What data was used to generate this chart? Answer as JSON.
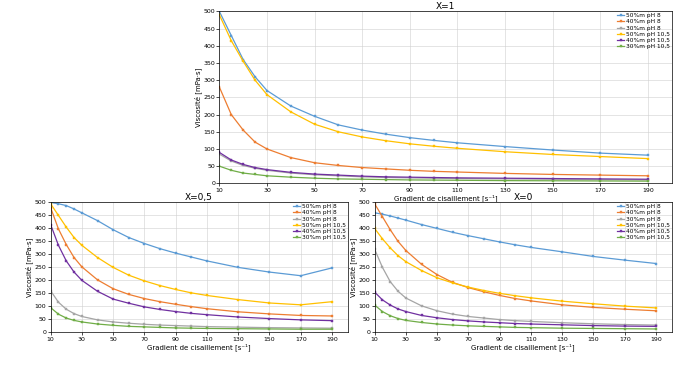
{
  "title_x1": "X=1",
  "title_x05": "X=0,5",
  "title_x0": "X=0",
  "xlabel": "Gradient de cisaillement [s⁻¹]",
  "ylabel": "Viscosité [mPa·s]",
  "xlim": [
    10,
    200
  ],
  "ylim": [
    0,
    500
  ],
  "xticks": [
    10,
    30,
    50,
    70,
    90,
    110,
    130,
    150,
    170,
    190
  ],
  "yticks": [
    0,
    50,
    100,
    150,
    200,
    250,
    300,
    350,
    400,
    450,
    500
  ],
  "legend_labels": [
    "50%m pH 8",
    "40%m pH 8",
    "30%m pH 8",
    "50%m pH 10,5",
    "40%m pH 10,5",
    "30%m pH 10,5"
  ],
  "colors": [
    "#5B9BD5",
    "#ED7D31",
    "#A5A5A5",
    "#FFC000",
    "#7030A0",
    "#70AD47"
  ],
  "x_points": [
    10,
    15,
    20,
    25,
    30,
    40,
    50,
    60,
    70,
    80,
    90,
    100,
    110,
    130,
    150,
    170,
    190
  ],
  "curves_x1": {
    "50m_pH8": [
      500,
      430,
      360,
      310,
      270,
      225,
      195,
      170,
      155,
      143,
      133,
      125,
      118,
      107,
      97,
      88,
      82
    ],
    "40m_pH8": [
      280,
      200,
      155,
      120,
      100,
      75,
      60,
      52,
      46,
      42,
      38,
      35,
      33,
      29,
      26,
      24,
      22
    ],
    "30m_pH8": [
      85,
      65,
      52,
      44,
      38,
      30,
      25,
      22,
      19,
      17,
      16,
      15,
      14,
      13,
      12,
      11,
      10
    ],
    "50m_pH105": [
      490,
      415,
      355,
      300,
      258,
      208,
      172,
      150,
      135,
      124,
      115,
      108,
      102,
      92,
      84,
      78,
      72
    ],
    "40m_pH105": [
      90,
      68,
      55,
      46,
      40,
      32,
      27,
      24,
      21,
      19,
      18,
      17,
      16,
      15,
      14,
      13,
      12
    ],
    "30m_pH105": [
      50,
      38,
      30,
      26,
      22,
      18,
      15,
      13,
      12,
      11,
      10,
      9.5,
      9,
      8,
      7.5,
      7,
      6.5
    ]
  },
  "curves_x05": {
    "50m_pH8": [
      500,
      495,
      488,
      475,
      460,
      430,
      395,
      365,
      342,
      322,
      305,
      290,
      275,
      250,
      232,
      218,
      248
    ],
    "40m_pH8": [
      480,
      398,
      338,
      288,
      252,
      202,
      168,
      146,
      130,
      118,
      108,
      99,
      91,
      79,
      71,
      65,
      63
    ],
    "30m_pH8": [
      160,
      116,
      89,
      72,
      61,
      48,
      40,
      35,
      31,
      28,
      26,
      24,
      22,
      20,
      18,
      17,
      16
    ],
    "50m_pH105": [
      495,
      450,
      405,
      365,
      335,
      288,
      250,
      220,
      198,
      180,
      165,
      152,
      142,
      126,
      113,
      106,
      118
    ],
    "40m_pH105": [
      415,
      335,
      275,
      232,
      200,
      158,
      128,
      112,
      98,
      88,
      80,
      73,
      68,
      59,
      53,
      48,
      45
    ],
    "30m_pH105": [
      95,
      70,
      55,
      46,
      40,
      32,
      27,
      23,
      21,
      19,
      17,
      16,
      15,
      14,
      13,
      12,
      12
    ]
  },
  "curves_x0": {
    "50m_pH8": [
      460,
      455,
      448,
      440,
      432,
      415,
      400,
      385,
      372,
      360,
      348,
      337,
      327,
      310,
      292,
      278,
      265
    ],
    "40m_pH8": [
      495,
      445,
      395,
      350,
      315,
      262,
      222,
      192,
      172,
      156,
      142,
      130,
      121,
      106,
      96,
      89,
      83
    ],
    "30m_pH8": [
      320,
      250,
      195,
      158,
      132,
      102,
      83,
      70,
      61,
      55,
      49,
      45,
      42,
      37,
      33,
      30,
      28
    ],
    "50m_pH105": [
      400,
      360,
      325,
      295,
      272,
      238,
      210,
      190,
      174,
      161,
      150,
      141,
      133,
      120,
      110,
      101,
      94
    ],
    "40m_pH105": [
      155,
      125,
      105,
      90,
      80,
      65,
      56,
      49,
      44,
      40,
      37,
      34,
      32,
      29,
      26,
      24,
      23
    ],
    "30m_pH105": [
      105,
      80,
      64,
      53,
      46,
      38,
      32,
      28,
      25,
      23,
      21,
      19,
      18,
      16,
      15,
      14,
      13
    ]
  },
  "background_color": "#ffffff",
  "grid_color": "#D0D0D0",
  "marker": "s",
  "markersize": 2.0,
  "linewidth": 0.9
}
